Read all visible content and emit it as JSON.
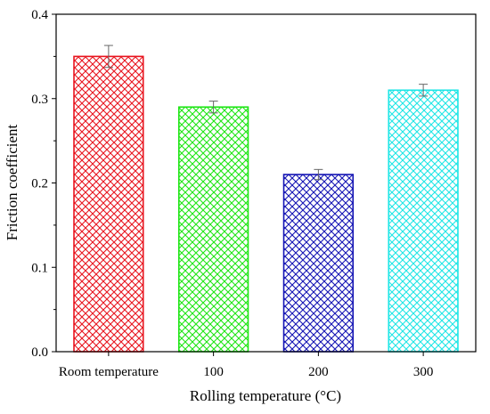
{
  "chart_data": {
    "type": "bar",
    "title": "",
    "xlabel": "Rolling temperature (°C)",
    "ylabel": "Friction coefficient",
    "categories": [
      "Room temperature",
      "100",
      "200",
      "300"
    ],
    "values": [
      0.35,
      0.29,
      0.21,
      0.31
    ],
    "errors": [
      0.013,
      0.007,
      0.006,
      0.007
    ],
    "colors": [
      "#e8141e",
      "#1ee614",
      "#1414b4",
      "#1ee6e6"
    ],
    "fill_pattern": "crosshatch",
    "ylim": [
      0,
      0.4
    ],
    "yticks": [
      "0.0",
      "0.1",
      "0.2",
      "0.3",
      "0.4"
    ],
    "grid": false,
    "legend": "none"
  }
}
